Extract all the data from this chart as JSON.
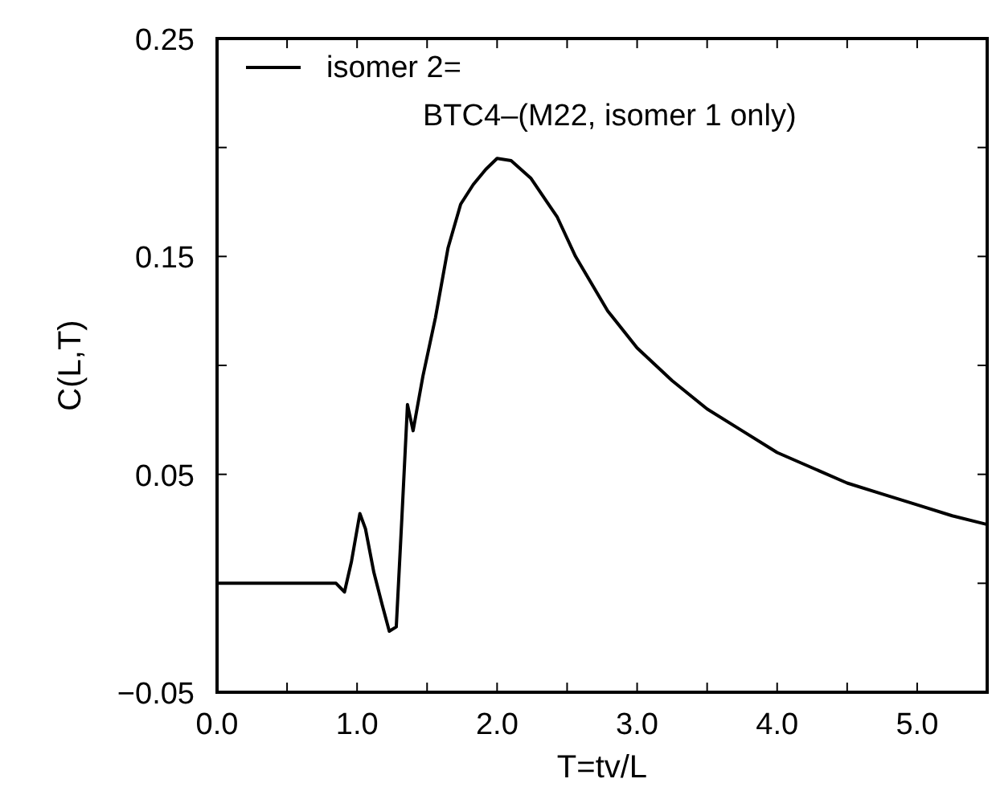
{
  "chart_data": {
    "type": "line",
    "xlabel": "T=tv/L",
    "ylabel": "C(L,T)",
    "x": [
      0,
      0.3,
      0.6,
      0.85,
      0.91,
      0.96,
      1.02,
      1.06,
      1.12,
      1.18,
      1.23,
      1.28,
      1.32,
      1.36,
      1.4,
      1.47,
      1.56,
      1.65,
      1.74,
      1.83,
      1.92,
      2.0,
      2.1,
      2.24,
      2.43,
      2.56,
      2.79,
      3.0,
      3.25,
      3.5,
      3.75,
      4.0,
      4.25,
      4.5,
      4.75,
      5.0,
      5.25,
      5.5
    ],
    "series": [
      {
        "name": "isomer 2=\nBTC4–(M22, isomer 1 only)",
        "color": "#000000",
        "values": [
          0,
          0,
          0,
          0,
          -0.004,
          0.01,
          0.032,
          0.025,
          0.005,
          -0.01,
          -0.022,
          -0.02,
          0.03,
          0.082,
          0.07,
          0.095,
          0.122,
          0.154,
          0.174,
          0.183,
          0.19,
          0.195,
          0.194,
          0.186,
          0.168,
          0.15,
          0.125,
          0.108,
          0.093,
          0.08,
          0.07,
          0.06,
          0.053,
          0.046,
          0.041,
          0.036,
          0.031,
          0.027
        ]
      }
    ],
    "xlim": [
      0,
      5.5
    ],
    "ylim": [
      -0.05,
      0.25
    ],
    "xticks": [
      {
        "value": 0,
        "label": "0.0"
      },
      {
        "value": 0.5,
        "label": null
      },
      {
        "value": 1,
        "label": "1.0"
      },
      {
        "value": 1.5,
        "label": null
      },
      {
        "value": 2,
        "label": "2.0"
      },
      {
        "value": 2.5,
        "label": null
      },
      {
        "value": 3,
        "label": "3.0"
      },
      {
        "value": 3.5,
        "label": null
      },
      {
        "value": 4,
        "label": "4.0"
      },
      {
        "value": 4.5,
        "label": null
      },
      {
        "value": 5,
        "label": "5.0"
      }
    ],
    "yticks": [
      {
        "value": -0.05,
        "label": "−0.05"
      },
      {
        "value": 0,
        "label": null
      },
      {
        "value": 0.05,
        "label": "0.05"
      },
      {
        "value": 0.1,
        "label": null
      },
      {
        "value": 0.15,
        "label": "0.15"
      },
      {
        "value": 0.2,
        "label": null
      },
      {
        "value": 0.25,
        "label": "0.25"
      }
    ],
    "legend": "top left",
    "marker": "none",
    "line_style": "solid",
    "grid": false
  }
}
